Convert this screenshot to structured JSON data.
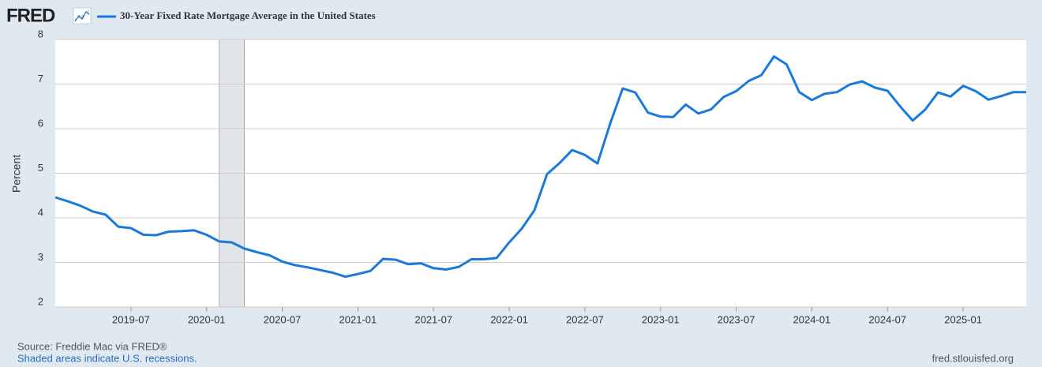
{
  "logo": "FRED",
  "chart_data": {
    "type": "line",
    "title": "30-Year Fixed Rate Mortgage Average in the United States",
    "y_label": "Percent",
    "x": [
      "2019-01",
      "2019-02",
      "2019-03",
      "2019-04",
      "2019-05",
      "2019-06",
      "2019-07",
      "2019-08",
      "2019-09",
      "2019-10",
      "2019-11",
      "2019-12",
      "2020-01",
      "2020-02",
      "2020-03",
      "2020-04",
      "2020-05",
      "2020-06",
      "2020-07",
      "2020-08",
      "2020-09",
      "2020-10",
      "2020-11",
      "2020-12",
      "2021-01",
      "2021-02",
      "2021-03",
      "2021-04",
      "2021-05",
      "2021-06",
      "2021-07",
      "2021-08",
      "2021-09",
      "2021-10",
      "2021-11",
      "2021-12",
      "2022-01",
      "2022-02",
      "2022-03",
      "2022-04",
      "2022-05",
      "2022-06",
      "2022-07",
      "2022-08",
      "2022-09",
      "2022-10",
      "2022-11",
      "2022-12",
      "2023-01",
      "2023-02",
      "2023-03",
      "2023-04",
      "2023-05",
      "2023-06",
      "2023-07",
      "2023-08",
      "2023-09",
      "2023-10",
      "2023-11",
      "2023-12",
      "2024-01",
      "2024-02",
      "2024-03",
      "2024-04",
      "2024-05",
      "2024-06",
      "2024-07",
      "2024-08",
      "2024-09",
      "2024-10",
      "2024-11",
      "2024-12",
      "2025-01",
      "2025-02",
      "2025-03",
      "2025-04",
      "2025-05",
      "2025-06"
    ],
    "series": [
      {
        "name": "30-Year Fixed Rate Mortgage Average in the United States",
        "color": "#1a7adb",
        "values": [
          4.46,
          4.37,
          4.27,
          4.14,
          4.07,
          3.8,
          3.77,
          3.62,
          3.61,
          3.69,
          3.7,
          3.72,
          3.62,
          3.47,
          3.45,
          3.31,
          3.23,
          3.16,
          3.02,
          2.94,
          2.89,
          2.83,
          2.77,
          2.68,
          2.74,
          2.81,
          3.08,
          3.06,
          2.96,
          2.98,
          2.87,
          2.84,
          2.9,
          3.07,
          3.07,
          3.1,
          3.45,
          3.76,
          4.17,
          4.98,
          5.23,
          5.52,
          5.41,
          5.22,
          6.11,
          6.9,
          6.81,
          6.36,
          6.27,
          6.26,
          6.54,
          6.34,
          6.43,
          6.71,
          6.84,
          7.07,
          7.2,
          7.62,
          7.44,
          6.82,
          6.64,
          6.78,
          6.82,
          6.99,
          7.06,
          6.92,
          6.85,
          6.5,
          6.18,
          6.43,
          6.81,
          6.72,
          6.96,
          6.84,
          6.65,
          6.73,
          6.82,
          6.82
        ]
      }
    ],
    "xlim": [
      "2019-01",
      "2025-06"
    ],
    "xticks": [
      "2019-07",
      "2020-01",
      "2020-07",
      "2021-01",
      "2021-07",
      "2022-01",
      "2022-07",
      "2023-01",
      "2023-07",
      "2024-01",
      "2024-07",
      "2025-01"
    ],
    "ylim": [
      2,
      8
    ],
    "yticks": [
      2,
      3,
      4,
      5,
      6,
      7,
      8
    ],
    "grid": true,
    "recessions": [
      [
        "2020-02",
        "2020-04"
      ]
    ],
    "recession_color": "#e1e4e8",
    "source": "Source: Freddie Mac via FRED®",
    "note": "Shaded areas indicate U.S. recessions.",
    "site": "fred.stlouisfed.org"
  }
}
